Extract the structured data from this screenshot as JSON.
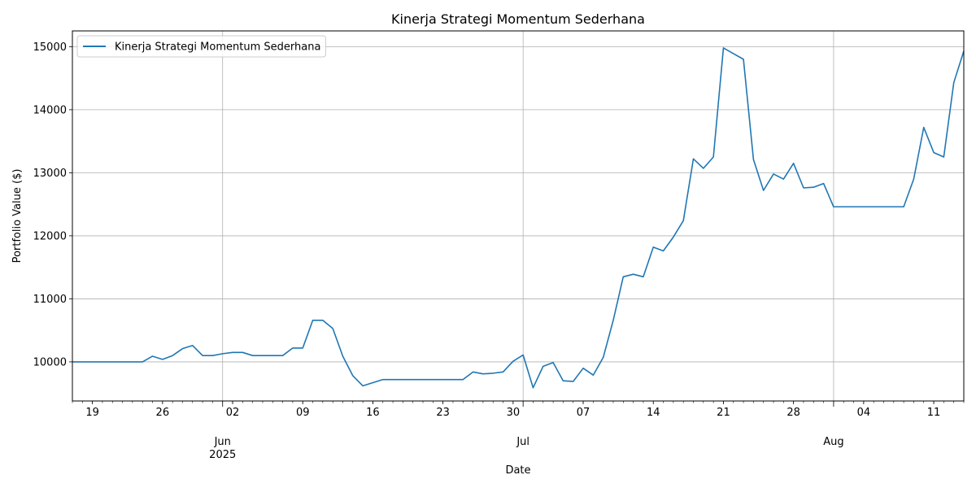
{
  "chart_data": {
    "type": "line",
    "title": "Kinerja Strategi Momentum Sederhana",
    "xlabel": "Date",
    "ylabel": "Portfolio Value ($)",
    "ylim": [
      9380,
      15250
    ],
    "xlim": [
      "2025-05-16",
      "2025-08-13"
    ],
    "yticks": [
      10000,
      11000,
      12000,
      13000,
      14000,
      15000
    ],
    "grid": true,
    "legend_position": "top-left",
    "series_color": "#1f77b4",
    "xticks_minor": [
      {
        "date": "2025-05-18",
        "label": "19"
      },
      {
        "date": "2025-05-25",
        "label": "26"
      },
      {
        "date": "2025-06-01",
        "label": "02"
      },
      {
        "date": "2025-06-08",
        "label": "09"
      },
      {
        "date": "2025-06-15",
        "label": "16"
      },
      {
        "date": "2025-06-22",
        "label": "23"
      },
      {
        "date": "2025-06-29",
        "label": "30"
      },
      {
        "date": "2025-07-06",
        "label": "07"
      },
      {
        "date": "2025-07-13",
        "label": "14"
      },
      {
        "date": "2025-07-20",
        "label": "21"
      },
      {
        "date": "2025-07-27",
        "label": "28"
      },
      {
        "date": "2025-08-03",
        "label": "04"
      },
      {
        "date": "2025-08-10",
        "label": "11"
      }
    ],
    "xticks_major": [
      {
        "date": "2025-05-31",
        "label": "Jun",
        "sublabel": "2025"
      },
      {
        "date": "2025-06-30",
        "label": "Jul",
        "sublabel": ""
      },
      {
        "date": "2025-07-31",
        "label": "Aug",
        "sublabel": ""
      }
    ],
    "series": [
      {
        "name": "Kinerja Strategi Momentum Sederhana",
        "points": [
          [
            "2025-05-16",
            10000
          ],
          [
            "2025-05-17",
            10000
          ],
          [
            "2025-05-18",
            10000
          ],
          [
            "2025-05-19",
            10000
          ],
          [
            "2025-05-20",
            10000
          ],
          [
            "2025-05-21",
            10000
          ],
          [
            "2025-05-22",
            10000
          ],
          [
            "2025-05-23",
            10000
          ],
          [
            "2025-05-24",
            10090
          ],
          [
            "2025-05-25",
            10040
          ],
          [
            "2025-05-26",
            10100
          ],
          [
            "2025-05-27",
            10210
          ],
          [
            "2025-05-28",
            10260
          ],
          [
            "2025-05-29",
            10100
          ],
          [
            "2025-05-30",
            10100
          ],
          [
            "2025-05-31",
            10130
          ],
          [
            "2025-06-01",
            10150
          ],
          [
            "2025-06-02",
            10150
          ],
          [
            "2025-06-03",
            10100
          ],
          [
            "2025-06-04",
            10100
          ],
          [
            "2025-06-05",
            10100
          ],
          [
            "2025-06-06",
            10100
          ],
          [
            "2025-06-07",
            10220
          ],
          [
            "2025-06-08",
            10220
          ],
          [
            "2025-06-09",
            10660
          ],
          [
            "2025-06-10",
            10660
          ],
          [
            "2025-06-11",
            10530
          ],
          [
            "2025-06-12",
            10090
          ],
          [
            "2025-06-13",
            9780
          ],
          [
            "2025-06-14",
            9620
          ],
          [
            "2025-06-15",
            9670
          ],
          [
            "2025-06-16",
            9720
          ],
          [
            "2025-06-17",
            9720
          ],
          [
            "2025-06-18",
            9720
          ],
          [
            "2025-06-19",
            9720
          ],
          [
            "2025-06-20",
            9720
          ],
          [
            "2025-06-21",
            9720
          ],
          [
            "2025-06-22",
            9720
          ],
          [
            "2025-06-23",
            9720
          ],
          [
            "2025-06-24",
            9720
          ],
          [
            "2025-06-25",
            9840
          ],
          [
            "2025-06-26",
            9810
          ],
          [
            "2025-06-27",
            9820
          ],
          [
            "2025-06-28",
            9840
          ],
          [
            "2025-06-29",
            10010
          ],
          [
            "2025-06-30",
            10110
          ],
          [
            "2025-07-01",
            9590
          ],
          [
            "2025-07-02",
            9930
          ],
          [
            "2025-07-03",
            9990
          ],
          [
            "2025-07-04",
            9700
          ],
          [
            "2025-07-05",
            9690
          ],
          [
            "2025-07-06",
            9900
          ],
          [
            "2025-07-07",
            9790
          ],
          [
            "2025-07-08",
            10070
          ],
          [
            "2025-07-09",
            10660
          ],
          [
            "2025-07-10",
            11350
          ],
          [
            "2025-07-11",
            11390
          ],
          [
            "2025-07-12",
            11350
          ],
          [
            "2025-07-13",
            11820
          ],
          [
            "2025-07-14",
            11760
          ],
          [
            "2025-07-15",
            11980
          ],
          [
            "2025-07-16",
            12240
          ],
          [
            "2025-07-17",
            13220
          ],
          [
            "2025-07-18",
            13070
          ],
          [
            "2025-07-19",
            13250
          ],
          [
            "2025-07-20",
            14980
          ],
          [
            "2025-07-21",
            14890
          ],
          [
            "2025-07-22",
            14800
          ],
          [
            "2025-07-23",
            13210
          ],
          [
            "2025-07-24",
            12720
          ],
          [
            "2025-07-25",
            12980
          ],
          [
            "2025-07-26",
            12900
          ],
          [
            "2025-07-27",
            13150
          ],
          [
            "2025-07-28",
            12760
          ],
          [
            "2025-07-29",
            12770
          ],
          [
            "2025-07-30",
            12830
          ],
          [
            "2025-07-31",
            12460
          ],
          [
            "2025-08-01",
            12460
          ],
          [
            "2025-08-02",
            12460
          ],
          [
            "2025-08-03",
            12460
          ],
          [
            "2025-08-04",
            12460
          ],
          [
            "2025-08-05",
            12460
          ],
          [
            "2025-08-06",
            12460
          ],
          [
            "2025-08-07",
            12460
          ],
          [
            "2025-08-08",
            12900
          ],
          [
            "2025-08-09",
            13720
          ],
          [
            "2025-08-10",
            13320
          ],
          [
            "2025-08-11",
            13250
          ],
          [
            "2025-08-12",
            14430
          ],
          [
            "2025-08-13",
            14930
          ]
        ]
      }
    ]
  }
}
